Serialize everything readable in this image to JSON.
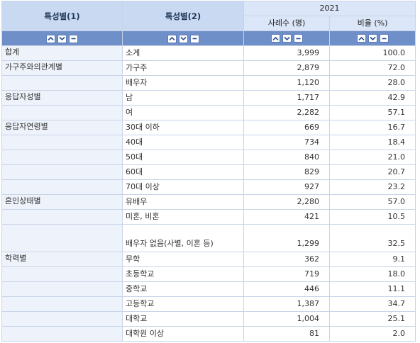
{
  "header": {
    "dim1": "특성별(1)",
    "dim2": "특성별(2)",
    "year": "2021",
    "col_count": "사례수 (명)",
    "col_ratio": "비율 (%)"
  },
  "rows": [
    {
      "c1": "합계",
      "c2": "소계",
      "count": "3,999",
      "ratio": "100.0"
    },
    {
      "c1": "가구주와의관계별",
      "c2": "가구주",
      "count": "2,879",
      "ratio": "72.0"
    },
    {
      "c1": "",
      "c2": "배우자",
      "count": "1,120",
      "ratio": "28.0"
    },
    {
      "c1": "응답자성별",
      "c2": "남",
      "count": "1,717",
      "ratio": "42.9"
    },
    {
      "c1": "",
      "c2": "여",
      "count": "2,282",
      "ratio": "57.1"
    },
    {
      "c1": "응답자연령별",
      "c2": "30대 이하",
      "count": "669",
      "ratio": "16.7"
    },
    {
      "c1": "",
      "c2": "40대",
      "count": "734",
      "ratio": "18.4"
    },
    {
      "c1": "",
      "c2": "50대",
      "count": "840",
      "ratio": "21.0"
    },
    {
      "c1": "",
      "c2": "60대",
      "count": "829",
      "ratio": "20.7"
    },
    {
      "c1": "",
      "c2": "70대 이상",
      "count": "927",
      "ratio": "23.2"
    },
    {
      "c1": "혼인상태별",
      "c2": "유배우",
      "count": "2,280",
      "ratio": "57.0"
    },
    {
      "c1": "",
      "c2": "미혼, 비혼",
      "count": "421",
      "ratio": "10.5"
    },
    {
      "c1": "",
      "c2": "배우자 없음(사별, 이혼 등)",
      "count": "1,299",
      "ratio": "32.5"
    },
    {
      "c1": "학력별",
      "c2": "무학",
      "count": "362",
      "ratio": "9.1"
    },
    {
      "c1": "",
      "c2": "초등학교",
      "count": "719",
      "ratio": "18.0"
    },
    {
      "c1": "",
      "c2": "중학교",
      "count": "446",
      "ratio": "11.1"
    },
    {
      "c1": "",
      "c2": "고등학교",
      "count": "1,387",
      "ratio": "34.7"
    },
    {
      "c1": "",
      "c2": "대학교",
      "count": "1,004",
      "ratio": "25.1"
    },
    {
      "c1": "",
      "c2": "대학원 이상",
      "count": "81",
      "ratio": "2.0"
    }
  ]
}
